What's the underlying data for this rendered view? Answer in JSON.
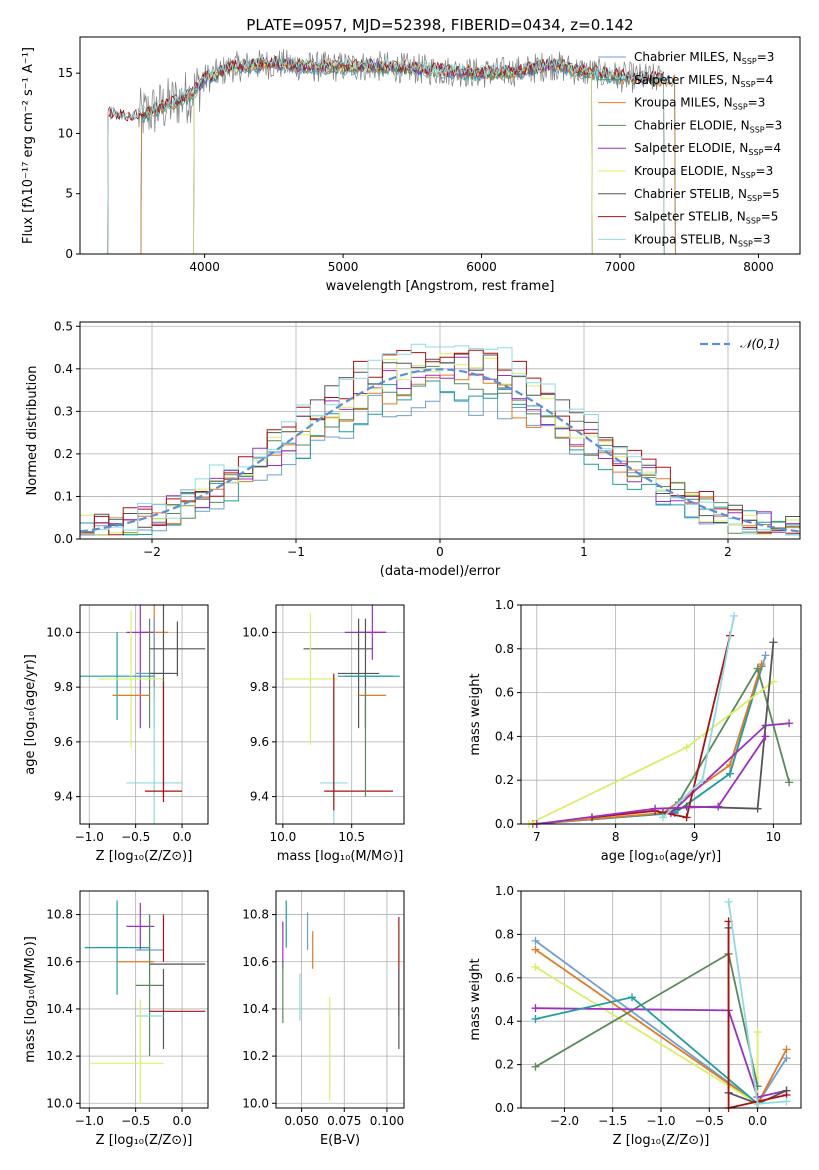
{
  "title": "PLATE=0957, MJD=52398, FIBERID=0434, z=0.142",
  "colors": {
    "chabrier_miles": "#6f9fd0",
    "salpeter_miles": "#1f9f9f",
    "kroupa_miles": "#e07b28",
    "chabrier_elodie": "#5a8a5a",
    "salpeter_elodie": "#9b30c0",
    "kroupa_elodie": "#d8ef6a",
    "chabrier_stelib": "#555555",
    "salpeter_stelib": "#aa1111",
    "kroupa_stelib": "#8fdbe0",
    "gaussian": "#5b8fd6",
    "grid": "#b0b0b0"
  },
  "chart_data": [
    {
      "id": "spectrum",
      "type": "line",
      "xlabel": "wavelength [Angstrom, rest frame]",
      "ylabel": "Flux [fλ10⁻¹⁷ erg cm⁻² s⁻¹ A⁻¹]",
      "xlim": [
        3100,
        8300
      ],
      "ylim": [
        0,
        18
      ],
      "xticks": [
        "4000",
        "5000",
        "6000",
        "7000",
        "8000"
      ],
      "yticks": [
        "0",
        "5",
        "10",
        "15"
      ],
      "legend_position": "top-right",
      "legend": [
        "Chabrier MILES, N_SSP=3",
        "Salpeter MILES, N_SSP=4",
        "Kroupa MILES, N_SSP=3",
        "Chabrier ELODIE, N_SSP=3",
        "Salpeter ELODIE, N_SSP=4",
        "Kroupa ELODIE, N_SSP=3",
        "Chabrier STELIB, N_SSP=5",
        "Salpeter STELIB, N_SSP=5",
        "Kroupa STELIB, N_SSP=3"
      ],
      "continuum": [
        [
          3300,
          11.6
        ],
        [
          3500,
          11.3
        ],
        [
          3700,
          12.2
        ],
        [
          3900,
          13.2
        ],
        [
          4000,
          14.5
        ],
        [
          4200,
          15.5
        ],
        [
          4500,
          15.8
        ],
        [
          4800,
          15.5
        ],
        [
          5200,
          15.6
        ],
        [
          5600,
          15.3
        ],
        [
          6000,
          15.0
        ],
        [
          6300,
          15.2
        ],
        [
          6500,
          15.7
        ],
        [
          6700,
          15.2
        ],
        [
          7000,
          14.7
        ],
        [
          7300,
          14.5
        ]
      ]
    },
    {
      "id": "residuals",
      "type": "step",
      "xlabel": "(data-model)/error",
      "ylabel": "Normed distribution",
      "xlim": [
        -2.5,
        2.5
      ],
      "ylim": [
        0,
        0.51
      ],
      "xticks": [
        "−2",
        "−1",
        "0",
        "1",
        "2"
      ],
      "yticks": [
        "0.0",
        "0.1",
        "0.2",
        "0.3",
        "0.4",
        "0.5"
      ],
      "legend": [
        "𝒩(0,1)"
      ],
      "legend_position": "top-right",
      "bin_edges": [
        -2.5,
        -2.4,
        -2.3,
        -2.2,
        -2.1,
        -2.0,
        -1.9,
        -1.8,
        -1.7,
        -1.6,
        -1.5,
        -1.4,
        -1.3,
        -1.2,
        -1.1,
        -1.0,
        -0.9,
        -0.8,
        -0.7,
        -0.6,
        -0.5,
        -0.4,
        -0.3,
        -0.2,
        -0.1,
        0.0,
        0.1,
        0.2,
        0.3,
        0.4,
        0.5,
        0.6,
        0.7,
        0.8,
        0.9,
        1.0,
        1.1,
        1.2,
        1.3,
        1.4,
        1.5,
        1.6,
        1.7,
        1.8,
        1.9,
        2.0,
        2.1,
        2.2,
        2.3,
        2.4,
        2.5
      ]
    },
    {
      "id": "age_vs_z",
      "type": "errorbar",
      "xlabel": "Z [log₁₀(Z/Z⊙)]",
      "ylabel": "age  [log₁₀(age/yr)]",
      "xlim": [
        -1.1,
        0.28
      ],
      "ylim": [
        9.3,
        10.1
      ],
      "xticks": [
        "−1.0",
        "−0.5",
        "0.0"
      ],
      "yticks": [
        "9.4",
        "9.6",
        "9.8",
        "10.0"
      ],
      "points": [
        {
          "x": -0.3,
          "y": 10.0,
          "xe": 0.15,
          "ye": 0.25,
          "c": "kroupa_miles"
        },
        {
          "x": -0.45,
          "y": 10.0,
          "xe": 0.15,
          "ye": 0.35,
          "c": "salpeter_elodie"
        },
        {
          "x": -0.35,
          "y": 9.85,
          "xe": 0.15,
          "ye": 0.2,
          "c": "chabrier_elodie"
        },
        {
          "x": -0.3,
          "y": 9.85,
          "xe": 0.2,
          "ye": 0.2,
          "c": "chabrier_miles"
        },
        {
          "x": -0.7,
          "y": 9.84,
          "xe": 0.4,
          "ye": 0.16,
          "c": "salpeter_miles"
        },
        {
          "x": -0.55,
          "y": 9.83,
          "xe": 0.35,
          "ye": 0.25,
          "c": "kroupa_elodie"
        },
        {
          "x": -0.05,
          "y": 9.94,
          "xe": 0.3,
          "ye": 0.1,
          "c": "chabrier_stelib"
        },
        {
          "x": -0.2,
          "y": 9.85,
          "xe": 0.15,
          "ye": 0.45,
          "c": "chabrier_stelib"
        },
        {
          "x": -0.3,
          "y": 9.45,
          "xe": 0.3,
          "ye": 0.35,
          "c": "kroupa_stelib"
        },
        {
          "x": -0.2,
          "y": 9.42,
          "xe": 0.2,
          "ye": 0.0,
          "c": "salpeter_stelib"
        },
        {
          "x": -0.2,
          "y": 9.6,
          "xe": 0.0,
          "ye": 0.22,
          "c": "salpeter_stelib"
        },
        {
          "x": -0.55,
          "y": 9.77,
          "xe": 0.2,
          "ye": 0.0,
          "c": "kroupa_miles"
        }
      ]
    },
    {
      "id": "age_vs_mass",
      "type": "errorbar",
      "xlabel": "mass [log₁₀(M/M⊙)]",
      "ylabel": "",
      "xlim": [
        9.95,
        10.88
      ],
      "ylim": [
        9.3,
        10.1
      ],
      "xticks": [
        "10.0",
        "10.5"
      ],
      "yticks": [
        "9.4",
        "9.6",
        "9.8",
        "10.0"
      ],
      "points": [
        {
          "x": 10.6,
          "y": 10.0,
          "xe": 0.15,
          "ye": 0.0,
          "c": "salpeter_elodie"
        },
        {
          "x": 10.65,
          "y": 10.0,
          "xe": 0.1,
          "ye": 0.1,
          "c": "salpeter_elodie"
        },
        {
          "x": 10.4,
          "y": 9.94,
          "xe": 0.25,
          "ye": 0.0,
          "c": "chabrier_stelib"
        },
        {
          "x": 10.55,
          "y": 9.85,
          "xe": 0.15,
          "ye": 0.2,
          "c": "chabrier_stelib"
        },
        {
          "x": 10.6,
          "y": 9.85,
          "xe": 0.0,
          "ye": 0.2,
          "c": "chabrier_stelib"
        },
        {
          "x": 10.6,
          "y": 9.84,
          "xe": 0.2,
          "ye": 0.0,
          "c": "salpeter_miles"
        },
        {
          "x": 10.65,
          "y": 9.84,
          "xe": 0.2,
          "ye": 0.0,
          "c": "salpeter_miles"
        },
        {
          "x": 10.2,
          "y": 9.83,
          "xe": 0.2,
          "ye": 0.24,
          "c": "kroupa_elodie"
        },
        {
          "x": 10.65,
          "y": 9.77,
          "xe": 0.1,
          "ye": 0.0,
          "c": "kroupa_miles"
        },
        {
          "x": 10.37,
          "y": 9.45,
          "xe": 0.1,
          "ye": 0.35,
          "c": "kroupa_stelib"
        },
        {
          "x": 10.55,
          "y": 9.42,
          "xe": 0.25,
          "ye": 0.0,
          "c": "salpeter_stelib"
        },
        {
          "x": 10.37,
          "y": 9.6,
          "xe": 0.0,
          "ye": 0.25,
          "c": "salpeter_stelib"
        },
        {
          "x": 10.6,
          "y": 9.6,
          "xe": 0.0,
          "ye": 0.2,
          "c": "chabrier_elodie"
        }
      ]
    },
    {
      "id": "massweight_vs_age",
      "type": "line",
      "xlabel": "age  [log₁₀(age/yr)]",
      "ylabel": "mass weight",
      "xlim": [
        6.8,
        10.35
      ],
      "ylim": [
        0,
        1.0
      ],
      "xticks": [
        "7",
        "8",
        "9",
        "10"
      ],
      "yticks": [
        "0.0",
        "0.2",
        "0.4",
        "0.6",
        "0.8",
        "1.0"
      ],
      "series": [
        {
          "c": "chabrier_miles",
          "x": [
            6.95,
            8.75,
            9.45,
            9.9
          ],
          "y": [
            0.0,
            0.05,
            0.23,
            0.77
          ]
        },
        {
          "c": "salpeter_miles",
          "x": [
            6.95,
            8.75,
            9.45,
            9.85
          ],
          "y": [
            0.0,
            0.05,
            0.23,
            0.72
          ]
        },
        {
          "c": "kroupa_miles",
          "x": [
            6.95,
            8.6,
            9.45,
            9.85
          ],
          "y": [
            0.0,
            0.05,
            0.27,
            0.73
          ]
        },
        {
          "c": "chabrier_elodie",
          "x": [
            8.8,
            9.8,
            10.2
          ],
          "y": [
            0.1,
            0.71,
            0.19
          ]
        },
        {
          "c": "salpeter_elodie",
          "x": [
            8.7,
            9.9,
            10.2
          ],
          "y": [
            0.05,
            0.45,
            0.46
          ]
        },
        {
          "c": "kroupa_elodie",
          "x": [
            6.9,
            8.9,
            10.0
          ],
          "y": [
            0.0,
            0.35,
            0.65
          ]
        },
        {
          "c": "chabrier_stelib",
          "x": [
            8.6,
            8.9,
            9.8,
            10.0
          ],
          "y": [
            0.05,
            0.08,
            0.07,
            0.83
          ]
        },
        {
          "c": "salpeter_stelib",
          "x": [
            7.7,
            8.5,
            8.9,
            9.45
          ],
          "y": [
            0.03,
            0.06,
            0.03,
            0.86
          ]
        },
        {
          "c": "kroupa_stelib",
          "x": [
            8.6,
            9.1,
            9.5
          ],
          "y": [
            0.03,
            0.2,
            0.95
          ]
        },
        {
          "c": "salpeter_elodie",
          "x": [
            7.0,
            8.5,
            9.3,
            9.9
          ],
          "y": [
            0.0,
            0.07,
            0.08,
            0.4
          ]
        }
      ]
    },
    {
      "id": "mass_vs_z",
      "type": "errorbar",
      "xlabel": "Z [log₁₀(Z/Z⊙)]",
      "ylabel": "mass [log₁₀(M/M⊙)]",
      "xlim": [
        -1.1,
        0.28
      ],
      "ylim": [
        9.98,
        10.9
      ],
      "xticks": [
        "−1.0",
        "−0.5",
        "0.0"
      ],
      "yticks": [
        "10.0",
        "10.2",
        "10.4",
        "10.6",
        "10.8"
      ],
      "points": [
        {
          "x": -0.7,
          "y": 10.66,
          "xe": 0.35,
          "ye": 0.2,
          "c": "salpeter_miles"
        },
        {
          "x": -0.45,
          "y": 10.75,
          "xe": 0.15,
          "ye": 0.1,
          "c": "salpeter_elodie"
        },
        {
          "x": -0.35,
          "y": 10.65,
          "xe": 0.15,
          "ye": 0.15,
          "c": "chabrier_miles"
        },
        {
          "x": -0.2,
          "y": 10.7,
          "xe": 0.0,
          "ye": 0.1,
          "c": "salpeter_stelib"
        },
        {
          "x": -0.5,
          "y": 10.6,
          "xe": 0.2,
          "ye": 0.0,
          "c": "kroupa_miles"
        },
        {
          "x": -0.05,
          "y": 10.59,
          "xe": 0.3,
          "ye": 0.0,
          "c": "chabrier_stelib"
        },
        {
          "x": -0.35,
          "y": 10.5,
          "xe": 0.15,
          "ye": 0.3,
          "c": "chabrier_elodie"
        },
        {
          "x": -0.2,
          "y": 10.4,
          "xe": 0.0,
          "ye": 0.17,
          "c": "chabrier_stelib"
        },
        {
          "x": -0.05,
          "y": 10.39,
          "xe": 0.3,
          "ye": 0.0,
          "c": "salpeter_stelib"
        },
        {
          "x": -0.35,
          "y": 10.37,
          "xe": 0.15,
          "ye": 0.0,
          "c": "kroupa_stelib"
        },
        {
          "x": -0.45,
          "y": 10.22,
          "xe": 0.0,
          "ye": 0.22,
          "c": "kroupa_elodie"
        },
        {
          "x": -0.6,
          "y": 10.17,
          "xe": 0.4,
          "ye": 0.0,
          "c": "kroupa_elodie"
        }
      ]
    },
    {
      "id": "mass_vs_ebv",
      "type": "errorbar",
      "xlabel": "E(B-V)",
      "ylabel": "",
      "xlim": [
        0.035,
        0.11
      ],
      "ylim": [
        9.98,
        10.9
      ],
      "xticks": [
        "0.050",
        "0.075",
        "0.100"
      ],
      "yticks": [
        "10.0",
        "10.2",
        "10.4",
        "10.6",
        "10.8"
      ],
      "points": [
        {
          "x": 0.041,
          "y": 10.76,
          "xe": 0,
          "ye": 0.1,
          "c": "salpeter_miles"
        },
        {
          "x": 0.039,
          "y": 10.67,
          "xe": 0,
          "ye": 0.1,
          "c": "salpeter_elodie"
        },
        {
          "x": 0.0535,
          "y": 10.73,
          "xe": 0,
          "ye": 0.08,
          "c": "chabrier_miles"
        },
        {
          "x": 0.0565,
          "y": 10.65,
          "xe": 0,
          "ye": 0.08,
          "c": "kroupa_miles"
        },
        {
          "x": 0.039,
          "y": 10.47,
          "xe": 0,
          "ye": 0.13,
          "c": "chabrier_elodie"
        },
        {
          "x": 0.049,
          "y": 10.45,
          "xe": 0,
          "ye": 0.1,
          "c": "kroupa_stelib"
        },
        {
          "x": 0.0665,
          "y": 10.23,
          "xe": 0,
          "ye": 0.22,
          "c": "kroupa_elodie"
        },
        {
          "x": 0.107,
          "y": 10.58,
          "xe": 0,
          "ye": 0.21,
          "c": "salpeter_stelib"
        },
        {
          "x": 0.107,
          "y": 10.4,
          "xe": 0,
          "ye": 0.17,
          "c": "chabrier_stelib"
        }
      ]
    },
    {
      "id": "massweight_vs_z",
      "type": "line",
      "xlabel": "Z [log₁₀(Z/Z⊙)]",
      "ylabel": "mass weight",
      "xlim": [
        -2.45,
        0.45
      ],
      "ylim": [
        0,
        1.0
      ],
      "xticks": [
        "−2.0",
        "−1.5",
        "−1.0",
        "−0.5",
        "0.0"
      ],
      "yticks": [
        "0.0",
        "0.2",
        "0.4",
        "0.6",
        "0.8",
        "1.0"
      ],
      "series": [
        {
          "c": "chabrier_miles",
          "x": [
            -2.3,
            0.0,
            0.3
          ],
          "y": [
            0.77,
            0.02,
            0.23
          ]
        },
        {
          "c": "kroupa_miles",
          "x": [
            -2.3,
            0.0,
            0.3
          ],
          "y": [
            0.73,
            0.02,
            0.27
          ]
        },
        {
          "c": "kroupa_elodie",
          "x": [
            -2.3,
            0.0,
            0.0
          ],
          "y": [
            0.65,
            0.02,
            0.35
          ]
        },
        {
          "c": "chabrier_elodie",
          "x": [
            -2.3,
            -0.3,
            0.0
          ],
          "y": [
            0.19,
            0.71,
            0.1
          ]
        },
        {
          "c": "salpeter_elodie",
          "x": [
            -2.3,
            -0.3,
            0.0,
            0.3
          ],
          "y": [
            0.46,
            0.45,
            0.05,
            0.08
          ]
        },
        {
          "c": "salpeter_miles",
          "x": [
            -2.3,
            -1.3,
            0.0
          ],
          "y": [
            0.41,
            0.51,
            0.02
          ]
        },
        {
          "c": "chabrier_stelib",
          "x": [
            -0.3,
            -0.3,
            0.0,
            0.3
          ],
          "y": [
            0.83,
            0.07,
            0.02,
            0.08
          ]
        },
        {
          "c": "salpeter_stelib",
          "x": [
            -0.3,
            -0.3,
            0.0,
            0.3
          ],
          "y": [
            0.86,
            0.0,
            0.03,
            0.06
          ]
        },
        {
          "c": "kroupa_stelib",
          "x": [
            -0.3,
            0.0,
            0.3
          ],
          "y": [
            0.95,
            0.02,
            0.03
          ]
        }
      ]
    }
  ]
}
